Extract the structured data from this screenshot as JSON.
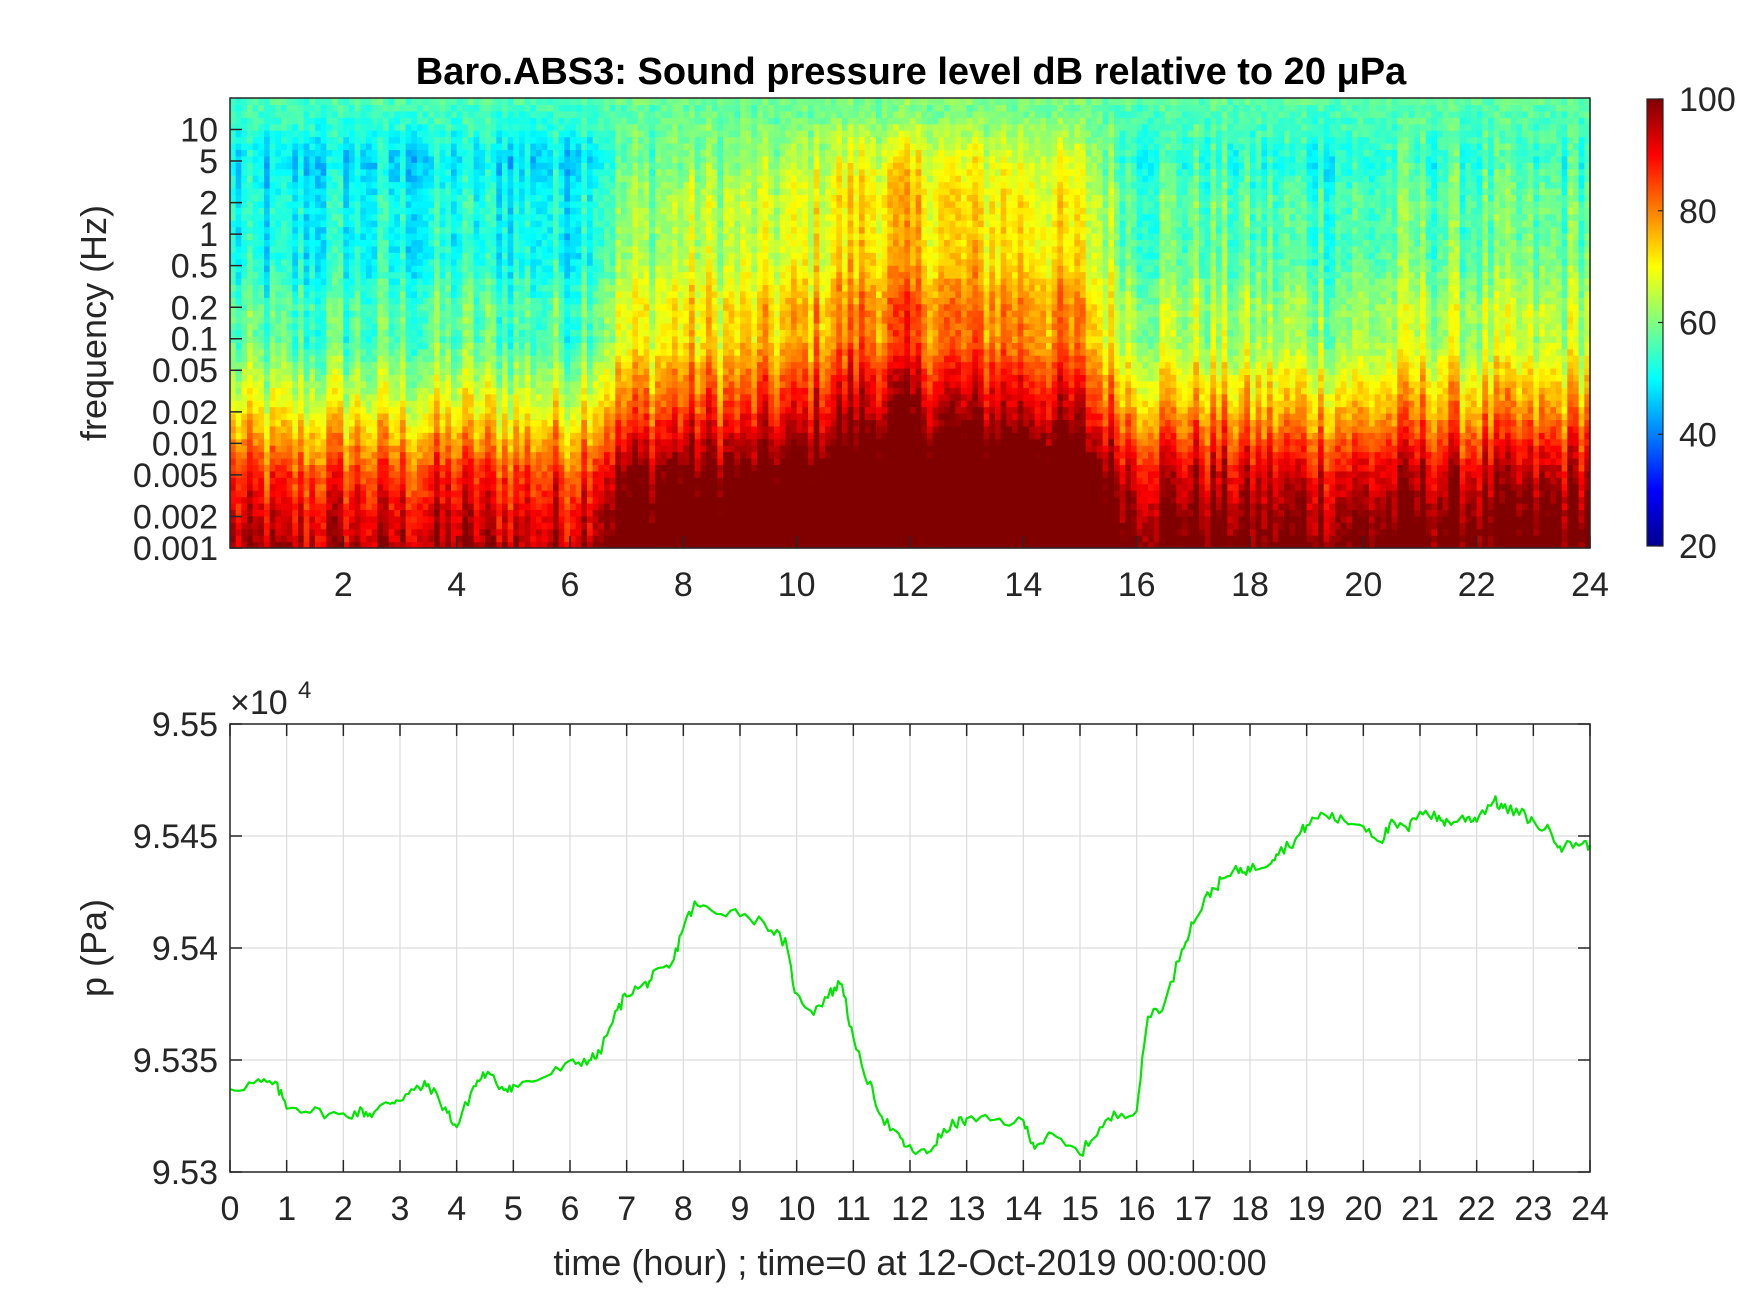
{
  "chart_data": [
    {
      "type": "heatmap",
      "title": "Baro.ABS3: Sound pressure level dB relative to 20 μPa",
      "xlabel": "",
      "ylabel": "frequency (Hz)",
      "xlim": [
        0,
        24
      ],
      "x_ticks": [
        2,
        4,
        6,
        8,
        10,
        12,
        14,
        16,
        18,
        20,
        22,
        24
      ],
      "y_scale": "log",
      "ylim": [
        0.001,
        20
      ],
      "y_ticks": [
        0.001,
        0.002,
        0.005,
        0.01,
        0.02,
        0.05,
        0.1,
        0.2,
        0.5,
        1,
        2,
        5,
        10
      ],
      "colormap": "jet",
      "clim": [
        20,
        100
      ],
      "colorbar_ticks": [
        20,
        40,
        60,
        80,
        100
      ],
      "colorbar_position": "right",
      "band_levels_db": [
        {
          "freq_hz": 0.001,
          "level_db": 94
        },
        {
          "freq_hz": 0.002,
          "level_db": 90
        },
        {
          "freq_hz": 0.005,
          "level_db": 84
        },
        {
          "freq_hz": 0.01,
          "level_db": 76
        },
        {
          "freq_hz": 0.02,
          "level_db": 68
        },
        {
          "freq_hz": 0.05,
          "level_db": 60
        },
        {
          "freq_hz": 0.1,
          "level_db": 54
        },
        {
          "freq_hz": 0.2,
          "level_db": 55
        },
        {
          "freq_hz": 0.5,
          "level_db": 50
        },
        {
          "freq_hz": 1,
          "level_db": 49
        },
        {
          "freq_hz": 2,
          "level_db": 50
        },
        {
          "freq_hz": 5,
          "level_db": 46
        },
        {
          "freq_hz": 10,
          "level_db": 52
        },
        {
          "freq_hz": 20,
          "level_db": 56
        }
      ],
      "activity_by_hour_db": [
        {
          "hour": 0,
          "boost_db": 2
        },
        {
          "hour": 1,
          "boost_db": 0
        },
        {
          "hour": 2,
          "boost_db": 2
        },
        {
          "hour": 3,
          "boost_db": 1
        },
        {
          "hour": 4,
          "boost_db": 3
        },
        {
          "hour": 5,
          "boost_db": 2
        },
        {
          "hour": 6,
          "boost_db": 2
        },
        {
          "hour": 7,
          "boost_db": 14
        },
        {
          "hour": 8,
          "boost_db": 18
        },
        {
          "hour": 9,
          "boost_db": 18
        },
        {
          "hour": 10,
          "boost_db": 21
        },
        {
          "hour": 11,
          "boost_db": 28
        },
        {
          "hour": 12,
          "boost_db": 30
        },
        {
          "hour": 13,
          "boost_db": 27
        },
        {
          "hour": 14,
          "boost_db": 28
        },
        {
          "hour": 15,
          "boost_db": 24
        },
        {
          "hour": 16,
          "boost_db": 10
        },
        {
          "hour": 17,
          "boost_db": 10
        },
        {
          "hour": 18,
          "boost_db": 8
        },
        {
          "hour": 19,
          "boost_db": 8
        },
        {
          "hour": 20,
          "boost_db": 8
        },
        {
          "hour": 21,
          "boost_db": 11
        },
        {
          "hour": 22,
          "boost_db": 10
        },
        {
          "hour": 23,
          "boost_db": 9
        },
        {
          "hour": 24,
          "boost_db": 12
        }
      ]
    },
    {
      "type": "line",
      "title": "",
      "xlabel": "time (hour) ; time=0 at 12-Oct-2019 00:00:00",
      "ylabel": "p (Pa)",
      "xlim": [
        0,
        24
      ],
      "x_ticks": [
        0,
        1,
        2,
        3,
        4,
        5,
        6,
        7,
        8,
        9,
        10,
        11,
        12,
        13,
        14,
        15,
        16,
        17,
        18,
        19,
        20,
        21,
        22,
        23,
        24
      ],
      "ylim": [
        95300,
        95500
      ],
      "y_ticks": [
        95300,
        95350,
        95400,
        95450,
        95500
      ],
      "y_tick_labels": [
        "9.53",
        "9.535",
        "9.54",
        "9.545",
        "9.55"
      ],
      "y_exponent_label": "×10",
      "y_exponent": "4",
      "grid": true,
      "color": "#00e600",
      "series": [
        {
          "x": [
            0,
            0.5,
            0.8,
            1.0,
            1.5,
            2.0,
            2.3,
            2.5,
            2.8,
            3.0,
            3.3,
            3.5,
            3.8,
            4.0,
            4.3,
            4.5,
            4.8,
            5.0,
            5.5,
            6.0,
            6.3,
            6.5,
            6.8,
            7.0,
            7.3,
            7.5,
            7.8,
            8.0,
            8.2,
            8.5,
            9.0,
            9.5,
            9.8,
            10.0,
            10.3,
            10.6,
            10.8,
            11.0,
            11.3,
            11.5,
            11.8,
            12.0,
            12.3,
            12.5,
            12.8,
            13.0,
            13.5,
            14.0,
            14.2,
            14.5,
            15.0,
            15.3,
            15.6,
            16.0,
            16.2,
            16.5,
            16.8,
            17.0,
            17.3,
            17.5,
            17.8,
            18.0,
            18.3,
            18.5,
            18.8,
            19.0,
            19.3,
            19.6,
            20.0,
            20.3,
            20.5,
            20.8,
            21.0,
            21.3,
            21.5,
            21.8,
            22.0,
            22.3,
            22.5,
            22.8,
            23.0,
            23.3,
            23.5,
            23.8,
            24.0
          ],
          "y": [
            95337,
            95340,
            95339,
            95330,
            95327,
            95325,
            95327,
            95326,
            95331,
            95333,
            95337,
            95339,
            95328,
            95320,
            95338,
            95344,
            95338,
            95338,
            95342,
            95348,
            95350,
            95352,
            95370,
            95380,
            95383,
            95388,
            95392,
            95410,
            95419,
            95417,
            95416,
            95410,
            95402,
            95378,
            95372,
            95380,
            95385,
            95358,
            95338,
            95325,
            95315,
            95310,
            95308,
            95315,
            95322,
            95323,
            95323,
            95322,
            95312,
            95316,
            95308,
            95318,
            95325,
            95328,
            95370,
            95375,
            95400,
            95412,
            95425,
            95430,
            95435,
            95435,
            95438,
            95443,
            95448,
            95455,
            95460,
            95457,
            95455,
            95448,
            95455,
            95453,
            95462,
            95458,
            95456,
            95458,
            95458,
            95466,
            95462,
            95460,
            95456,
            95452,
            95445,
            95447,
            95446
          ]
        }
      ]
    }
  ]
}
